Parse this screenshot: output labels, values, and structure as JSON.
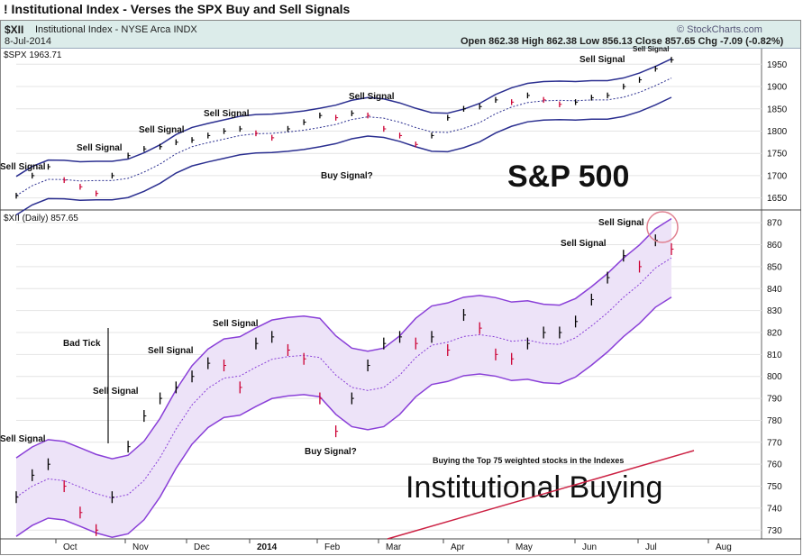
{
  "title": "! Institutional Index - Verses the SPX Buy and Sell Signals",
  "header": {
    "symbol": "$XII",
    "name": "Institutional Index - NYSE Arca  INDX",
    "date": "8-Jul-2014",
    "brand": "© StockCharts.com",
    "ohlc": "Open 862.38  High 862.38  Low 856.13  Close 857.65  Chg -7.09 (-0.82%)"
  },
  "colors": {
    "header_bg": "#dcecea",
    "band_fill": "#ede3f8",
    "band_line_top": "#8a40d8",
    "spx_band": "#2b2f90",
    "up_bar": "#000000",
    "down_bar": "#cc0033",
    "trend_line": "#cc2244",
    "circle": "#e08090"
  },
  "chart_data": [
    {
      "type": "line",
      "label": "$SPX 1963.71",
      "big_label": "S&P 500",
      "y_ticks": [
        1650,
        1700,
        1750,
        1800,
        1850,
        1900,
        1950
      ],
      "ylim": [
        1625,
        1985
      ],
      "x": [
        0,
        5,
        10,
        15,
        20,
        25,
        30,
        35,
        40,
        45,
        50,
        55,
        60,
        65,
        70,
        75,
        80,
        85,
        90,
        95,
        100,
        105,
        110,
        115,
        120,
        125,
        130,
        135,
        140,
        145,
        150,
        155,
        160,
        165,
        170,
        175,
        180,
        185,
        190,
        195,
        200,
        205
      ],
      "values": [
        1655,
        1700,
        1720,
        1690,
        1675,
        1660,
        1700,
        1745,
        1760,
        1765,
        1775,
        1780,
        1790,
        1800,
        1805,
        1795,
        1785,
        1805,
        1820,
        1835,
        1830,
        1840,
        1835,
        1805,
        1790,
        1770,
        1790,
        1830,
        1850,
        1855,
        1870,
        1865,
        1880,
        1870,
        1860,
        1865,
        1875,
        1880,
        1900,
        1915,
        1940,
        1960
      ],
      "annotations": [
        "Sell Signal",
        "Sell Signal",
        "Sell Signal",
        "Sell Signal",
        "Sell Signal",
        "Sell Signal",
        "Sell Signal",
        "Buy Signal?"
      ]
    },
    {
      "type": "line",
      "label": "$XII (Daily) 857.65",
      "big_label": "Institutional Buying",
      "note": "Buying the Top 75 weighted stocks in the Indexes",
      "y_ticks": [
        730,
        740,
        750,
        760,
        770,
        780,
        790,
        800,
        810,
        820,
        830,
        840,
        850,
        860,
        870
      ],
      "ylim": [
        726,
        875
      ],
      "x_ticks": [
        "Oct",
        "Nov",
        "Dec",
        "2014",
        "Feb",
        "Mar",
        "Apr",
        "May",
        "Jun",
        "Jul",
        "Aug"
      ],
      "x": [
        0,
        5,
        10,
        15,
        20,
        25,
        30,
        35,
        40,
        45,
        50,
        55,
        60,
        65,
        70,
        75,
        80,
        85,
        90,
        95,
        100,
        105,
        110,
        115,
        120,
        125,
        130,
        135,
        140,
        145,
        150,
        155,
        160,
        165,
        170,
        175,
        180,
        185,
        190,
        195,
        200,
        205
      ],
      "values": [
        745,
        755,
        760,
        750,
        738,
        730,
        745,
        768,
        782,
        790,
        795,
        800,
        806,
        805,
        795,
        815,
        818,
        812,
        808,
        790,
        775,
        790,
        805,
        815,
        818,
        815,
        818,
        812,
        828,
        822,
        810,
        808,
        815,
        820,
        820,
        825,
        835,
        845,
        855,
        850,
        862,
        858
      ],
      "annotations": [
        "Sell Signal",
        "Bad Tick",
        "Sell Signal",
        "Sell Signal",
        "Sell Signal",
        "Sell Signal",
        "Sell Signal",
        "Buy Signal?"
      ]
    }
  ]
}
